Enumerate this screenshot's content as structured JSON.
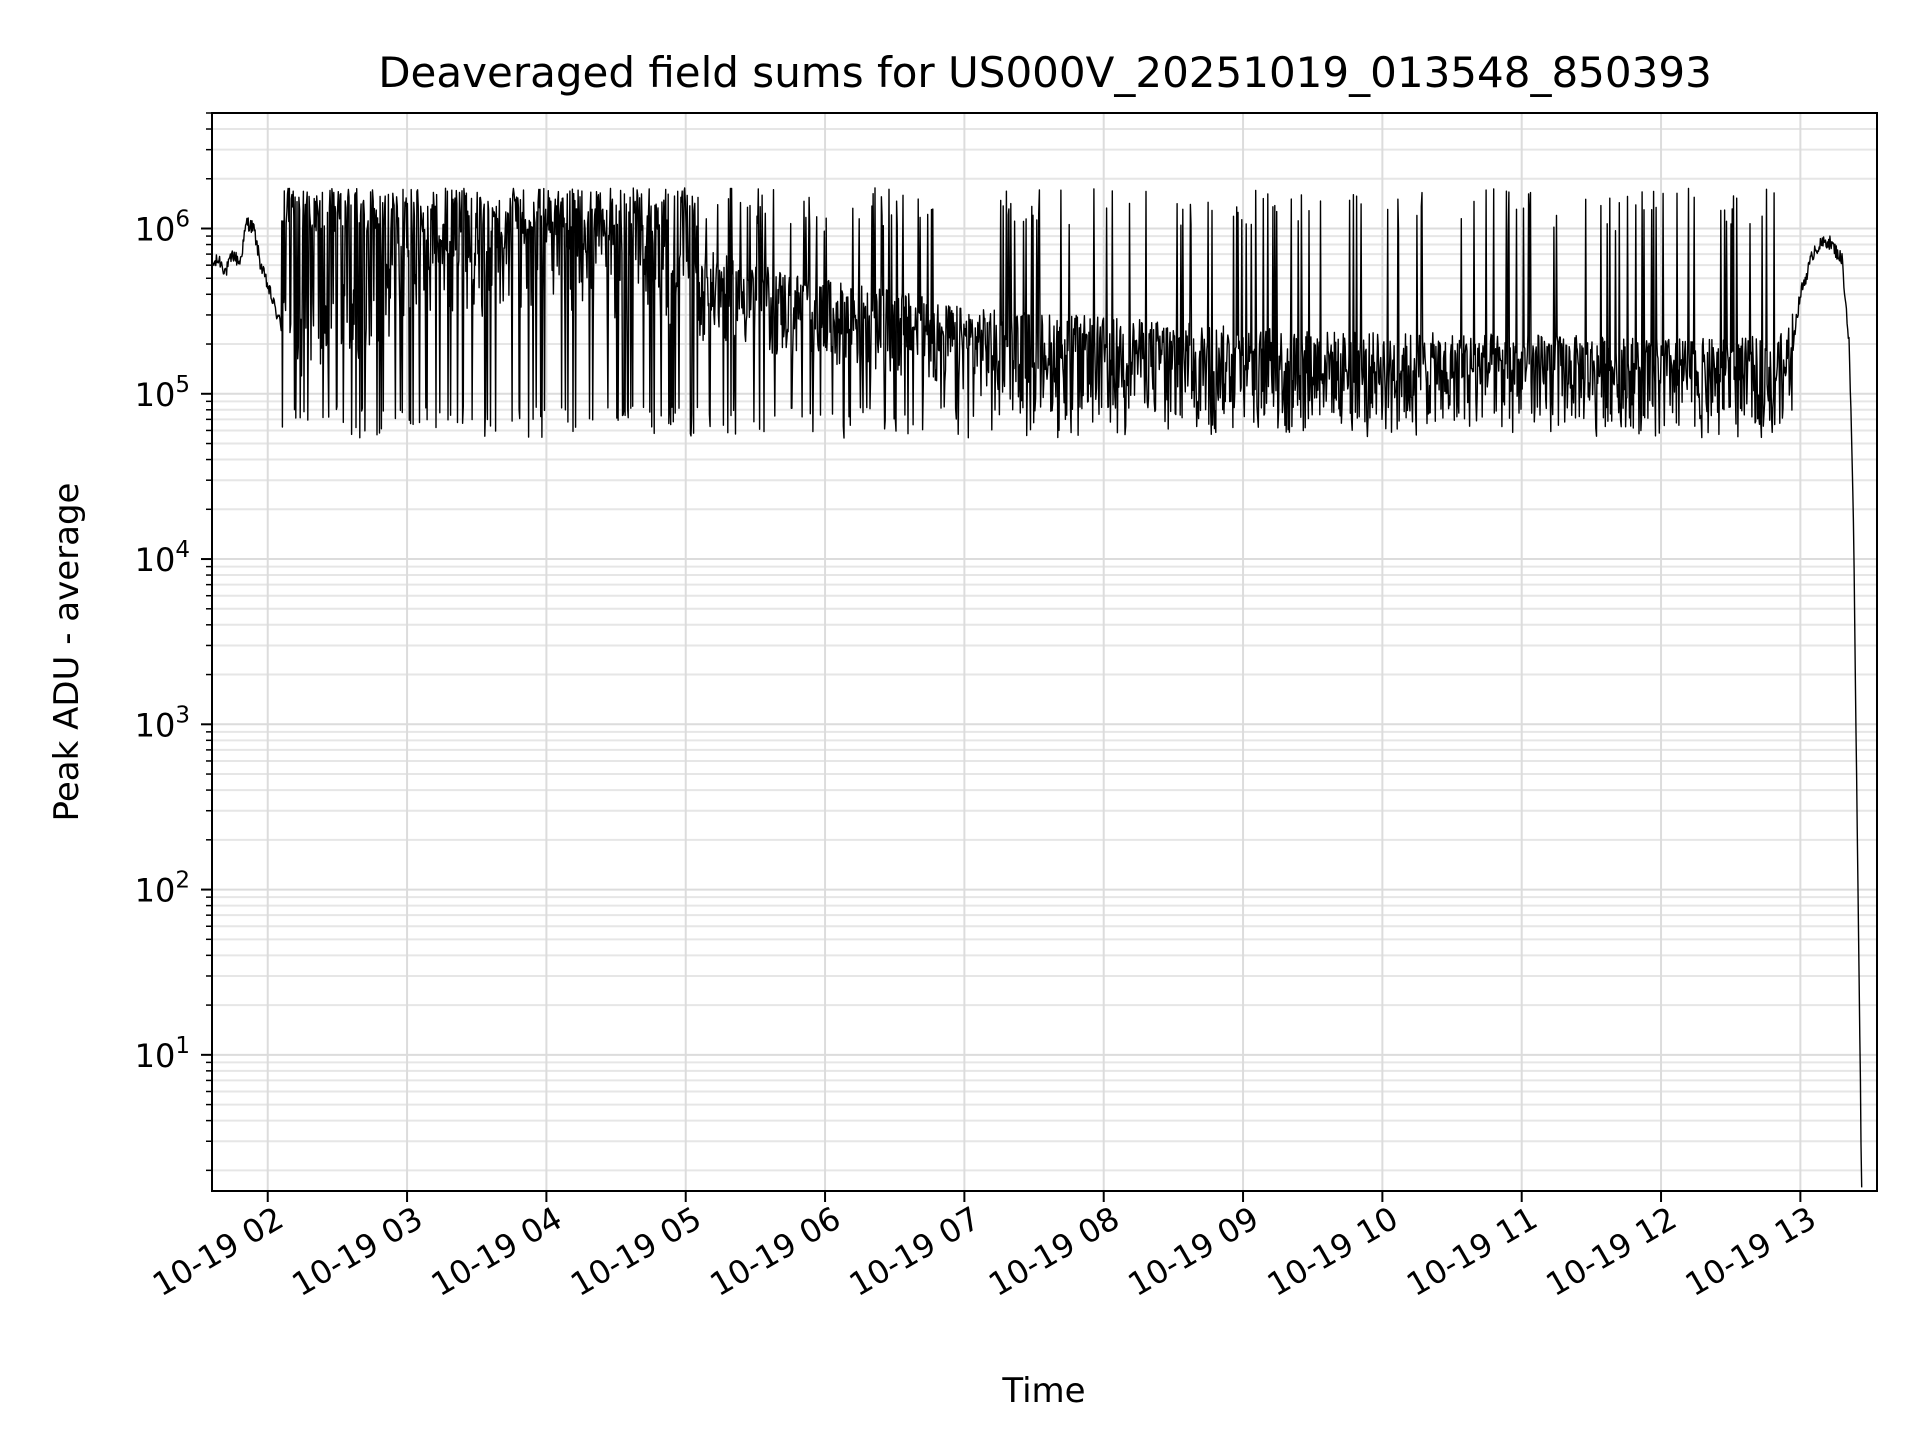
{
  "chart_data": {
    "type": "line",
    "title": "Deaveraged field sums for US000V_20251019_013548_850393",
    "xlabel": "Time",
    "ylabel": "Peak ADU - average",
    "yscale": "log",
    "ylim": [
      1.5,
      5000000
    ],
    "xlim_hours": [
      1.6,
      13.55
    ],
    "grid": true,
    "line_color": "#000000",
    "x_ticks": [
      {
        "hour": 2,
        "label": "10-19 02"
      },
      {
        "hour": 3,
        "label": "10-19 03"
      },
      {
        "hour": 4,
        "label": "10-19 04"
      },
      {
        "hour": 5,
        "label": "10-19 05"
      },
      {
        "hour": 6,
        "label": "10-19 06"
      },
      {
        "hour": 7,
        "label": "10-19 07"
      },
      {
        "hour": 8,
        "label": "10-19 08"
      },
      {
        "hour": 9,
        "label": "10-19 09"
      },
      {
        "hour": 10,
        "label": "10-19 10"
      },
      {
        "hour": 11,
        "label": "10-19 11"
      },
      {
        "hour": 12,
        "label": "10-19 12"
      },
      {
        "hour": 13,
        "label": "10-19 13"
      }
    ],
    "y_ticks": [
      {
        "value": 10,
        "base": "10",
        "exp": "1"
      },
      {
        "value": 100,
        "base": "10",
        "exp": "2"
      },
      {
        "value": 1000,
        "base": "10",
        "exp": "3"
      },
      {
        "value": 10000,
        "base": "10",
        "exp": "4"
      },
      {
        "value": 100000,
        "base": "10",
        "exp": "5"
      },
      {
        "value": 1000000,
        "base": "10",
        "exp": "6"
      }
    ],
    "series": [
      {
        "name": "field sums",
        "x_hours": [
          1.6,
          1.65,
          1.7,
          1.75,
          1.8,
          1.85,
          1.9,
          1.95,
          2.0,
          2.1,
          2.2,
          2.3,
          2.5,
          2.7,
          3.0,
          3.3,
          3.6,
          4.0,
          4.3,
          4.6,
          5.0,
          5.5,
          6.0,
          6.5,
          7.0,
          7.5,
          8.0,
          8.5,
          9.0,
          9.5,
          10.0,
          10.5,
          11.0,
          11.5,
          12.0,
          12.5,
          12.9,
          13.0,
          13.1,
          13.2,
          13.3,
          13.35,
          13.38,
          13.4,
          13.42,
          13.44
        ],
        "values": [
          600000,
          650000,
          550000,
          700000,
          620000,
          1100000,
          1000000,
          600000,
          450000,
          250000,
          150000,
          180000,
          220000,
          300000,
          500000,
          550000,
          520000,
          600000,
          500000,
          450000,
          400000,
          320000,
          250000,
          220000,
          170000,
          160000,
          150000,
          140000,
          130000,
          125000,
          120000,
          120000,
          118000,
          115000,
          112000,
          110000,
          120000,
          400000,
          750000,
          850000,
          650000,
          200000,
          20000,
          800,
          40,
          1.5
        ],
        "spike_band": {
          "x_start_hours": 2.1,
          "x_end_hours": 12.95,
          "low": 60000,
          "high": 1600000
        }
      }
    ]
  }
}
